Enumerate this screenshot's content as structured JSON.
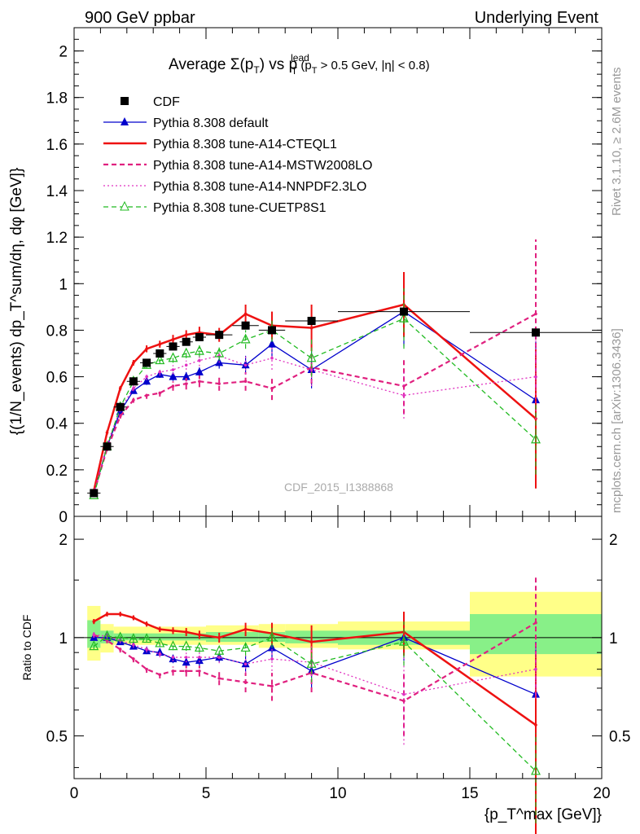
{
  "header": {
    "left": "900 GeV ppbar",
    "right": "Underlying Event"
  },
  "side_labels": {
    "rivet": "Rivet 3.1.10, ≥ 2.6M events",
    "mcplots": "mcplots.cern.ch [arXiv:1306.3436]"
  },
  "watermark": "CDF_2015_I1388868",
  "plot_title": {
    "main": "Average Σ(p",
    "sub1": "T",
    "mid": ") vs p",
    "sup": "lead",
    "sub2": "T",
    "tail": " (p",
    "sub3": "T",
    "end": " > 0.5 GeV, |η| < 0.8)"
  },
  "y_label_main": "{(1/N_events) dp_T^sum/dη, dφ [GeV]}",
  "y_label_ratio": "Ratio to CDF",
  "x_label": "{p_T^max [GeV]}",
  "colors": {
    "cdf": "#000000",
    "default": "#0000cc",
    "cteql1": "#ee1111",
    "mstw": "#e0207f",
    "nnpdf": "#e030c0",
    "cuetp8s1": "#22bb22",
    "band_yellow": "#ffff88",
    "band_green": "#88f088"
  },
  "chart_data": [
    {
      "type": "line",
      "panel": "main",
      "xlim": [
        0,
        20
      ],
      "ylim": [
        0,
        2.1
      ],
      "x_ticks": [],
      "y_ticks": [
        "0",
        "0.2",
        "0.4",
        "0.6",
        "0.8",
        "1",
        "1.2",
        "1.4",
        "1.6",
        "1.8",
        "2"
      ],
      "legend_position": "top-left",
      "series": [
        {
          "name": "CDF",
          "style": "marker-square",
          "color": "#000000",
          "x": [
            0.75,
            1.25,
            1.75,
            2.25,
            2.75,
            3.25,
            3.75,
            4.25,
            4.75,
            5.5,
            6.5,
            7.5,
            9.0,
            12.5,
            17.5
          ],
          "y": [
            0.1,
            0.3,
            0.47,
            0.58,
            0.66,
            0.7,
            0.73,
            0.75,
            0.77,
            0.78,
            0.82,
            0.8,
            0.84,
            0.88,
            0.79
          ],
          "xerr": [
            0.25,
            0.25,
            0.25,
            0.25,
            0.25,
            0.25,
            0.25,
            0.25,
            0.25,
            0.5,
            0.5,
            0.5,
            1.0,
            2.5,
            2.5
          ]
        },
        {
          "name": "Pythia 8.308 default",
          "style": "solid-triangle",
          "color": "#0000cc",
          "x": [
            0.75,
            1.25,
            1.75,
            2.25,
            2.75,
            3.25,
            3.75,
            4.25,
            4.75,
            5.5,
            6.5,
            7.5,
            9.0,
            12.5,
            17.5
          ],
          "y": [
            0.1,
            0.3,
            0.45,
            0.54,
            0.58,
            0.61,
            0.6,
            0.6,
            0.62,
            0.66,
            0.65,
            0.74,
            0.63,
            0.88,
            0.5
          ],
          "err": [
            0.005,
            0.008,
            0.01,
            0.01,
            0.015,
            0.015,
            0.018,
            0.02,
            0.02,
            0.025,
            0.04,
            0.06,
            0.08,
            0.15,
            0.25
          ]
        },
        {
          "name": "Pythia 8.308 tune-A14-CTEQL1",
          "style": "solid-thick",
          "color": "#ee1111",
          "x": [
            0.75,
            1.25,
            1.75,
            2.25,
            2.75,
            3.25,
            3.75,
            4.25,
            4.75,
            5.5,
            6.5,
            7.5,
            9.0,
            12.5,
            17.5
          ],
          "y": [
            0.11,
            0.36,
            0.55,
            0.66,
            0.72,
            0.74,
            0.76,
            0.78,
            0.79,
            0.78,
            0.87,
            0.82,
            0.81,
            0.91,
            0.42
          ],
          "err": [
            0.005,
            0.01,
            0.01,
            0.012,
            0.015,
            0.015,
            0.02,
            0.02,
            0.025,
            0.03,
            0.04,
            0.06,
            0.1,
            0.14,
            0.3
          ]
        },
        {
          "name": "Pythia 8.308 tune-A14-MSTW2008LO",
          "style": "dashed",
          "color": "#e0207f",
          "x": [
            0.75,
            1.25,
            1.75,
            2.25,
            2.75,
            3.25,
            3.75,
            4.25,
            4.75,
            5.5,
            6.5,
            7.5,
            9.0,
            12.5,
            17.5
          ],
          "y": [
            0.1,
            0.29,
            0.43,
            0.5,
            0.52,
            0.53,
            0.56,
            0.57,
            0.58,
            0.57,
            0.58,
            0.55,
            0.64,
            0.56,
            0.87
          ],
          "err": [
            0.005,
            0.01,
            0.01,
            0.012,
            0.015,
            0.015,
            0.02,
            0.025,
            0.025,
            0.03,
            0.04,
            0.05,
            0.07,
            0.12,
            0.32
          ]
        },
        {
          "name": "Pythia 8.308 tune-A14-NNPDF2.3LO",
          "style": "dotted",
          "color": "#e030c0",
          "x": [
            0.75,
            1.25,
            1.75,
            2.25,
            2.75,
            3.25,
            3.75,
            4.25,
            4.75,
            5.5,
            6.5,
            7.5,
            9.0,
            12.5,
            17.5
          ],
          "y": [
            0.1,
            0.31,
            0.46,
            0.55,
            0.6,
            0.62,
            0.63,
            0.65,
            0.67,
            0.69,
            0.65,
            0.68,
            0.63,
            0.52,
            0.6
          ],
          "err": [
            0.005,
            0.01,
            0.01,
            0.012,
            0.015,
            0.015,
            0.02,
            0.02,
            0.025,
            0.03,
            0.04,
            0.05,
            0.07,
            0.1,
            0.2
          ]
        },
        {
          "name": "Pythia 8.308 tune-CUETP8S1",
          "style": "dashed-open-triangle",
          "color": "#22bb22",
          "x": [
            0.75,
            1.25,
            1.75,
            2.25,
            2.75,
            3.25,
            3.75,
            4.25,
            4.75,
            5.5,
            6.5,
            7.5,
            9.0,
            12.5,
            17.5
          ],
          "y": [
            0.09,
            0.3,
            0.47,
            0.58,
            0.65,
            0.67,
            0.68,
            0.7,
            0.71,
            0.7,
            0.76,
            0.8,
            0.68,
            0.85,
            0.33
          ],
          "err": [
            0.005,
            0.008,
            0.01,
            0.012,
            0.015,
            0.015,
            0.02,
            0.02,
            0.025,
            0.03,
            0.04,
            0.05,
            0.08,
            0.13,
            0.15
          ]
        }
      ]
    },
    {
      "type": "line",
      "panel": "ratio",
      "xlim": [
        0,
        20
      ],
      "ylim": [
        0.37,
        2.35
      ],
      "log_scale": true,
      "x_ticks": [
        "0",
        "5",
        "10",
        "15",
        "20"
      ],
      "y_ticks": [
        "0.5",
        "1",
        "2"
      ],
      "reference_line": 1,
      "band_yellow": [
        [
          0.5,
          1.0,
          0.85,
          1.25
        ],
        [
          1.0,
          1.5,
          0.9,
          1.1
        ],
        [
          1.5,
          5.0,
          0.95,
          1.08
        ],
        [
          5.0,
          7.0,
          0.95,
          1.09
        ],
        [
          7.0,
          8.0,
          0.93,
          1.1
        ],
        [
          8.0,
          10.0,
          0.93,
          1.1
        ],
        [
          10.0,
          15.0,
          0.92,
          1.12
        ],
        [
          15.0,
          20.0,
          0.76,
          1.38
        ]
      ],
      "band_green": [
        [
          0.5,
          1.0,
          0.93,
          1.13
        ],
        [
          1.0,
          1.5,
          0.96,
          1.05
        ],
        [
          1.5,
          5.0,
          0.98,
          1.03
        ],
        [
          5.0,
          7.0,
          0.97,
          1.04
        ],
        [
          7.0,
          8.0,
          0.97,
          1.04
        ],
        [
          8.0,
          10.0,
          0.96,
          1.05
        ],
        [
          10.0,
          15.0,
          0.95,
          1.05
        ],
        [
          15.0,
          20.0,
          0.89,
          1.18
        ]
      ],
      "series": [
        {
          "name": "Pythia 8.308 default",
          "color": "#0000cc",
          "style": "solid-triangle",
          "x": [
            0.75,
            1.25,
            1.75,
            2.25,
            2.75,
            3.25,
            3.75,
            4.25,
            4.75,
            5.5,
            6.5,
            7.5,
            9.0,
            12.5,
            17.5
          ],
          "y": [
            1.0,
            1.0,
            0.97,
            0.94,
            0.91,
            0.9,
            0.86,
            0.84,
            0.85,
            0.87,
            0.83,
            0.93,
            0.79,
            1.0,
            0.67
          ],
          "err": [
            0.02,
            0.02,
            0.02,
            0.02,
            0.02,
            0.02,
            0.025,
            0.03,
            0.03,
            0.03,
            0.05,
            0.08,
            0.1,
            0.15,
            0.3
          ]
        },
        {
          "name": "Pythia 8.308 tune-A14-CTEQL1",
          "color": "#ee1111",
          "style": "solid-thick",
          "x": [
            0.75,
            1.25,
            1.75,
            2.25,
            2.75,
            3.25,
            3.75,
            4.25,
            4.75,
            5.5,
            6.5,
            7.5,
            9.0,
            12.5,
            17.5
          ],
          "y": [
            1.12,
            1.18,
            1.18,
            1.15,
            1.1,
            1.06,
            1.05,
            1.04,
            1.02,
            1.0,
            1.06,
            1.03,
            0.97,
            1.04,
            0.54
          ],
          "err": [
            0.02,
            0.02,
            0.02,
            0.02,
            0.02,
            0.02,
            0.025,
            0.03,
            0.03,
            0.035,
            0.05,
            0.08,
            0.12,
            0.16,
            0.35
          ]
        },
        {
          "name": "Pythia 8.308 tune-A14-MSTW2008LO",
          "color": "#e0207f",
          "style": "dashed",
          "x": [
            0.75,
            1.25,
            1.75,
            2.25,
            2.75,
            3.25,
            3.75,
            4.25,
            4.75,
            5.5,
            6.5,
            7.5,
            9.0,
            12.5,
            17.5
          ],
          "y": [
            1.02,
            0.98,
            0.92,
            0.86,
            0.8,
            0.77,
            0.79,
            0.79,
            0.79,
            0.75,
            0.73,
            0.71,
            0.78,
            0.64,
            1.11
          ],
          "err": [
            0.02,
            0.02,
            0.02,
            0.02,
            0.02,
            0.02,
            0.025,
            0.03,
            0.03,
            0.035,
            0.05,
            0.07,
            0.1,
            0.14,
            0.45
          ]
        },
        {
          "name": "Pythia 8.308 tune-A14-NNPDF2.3LO",
          "color": "#e030c0",
          "style": "dotted",
          "x": [
            0.75,
            1.25,
            1.75,
            2.25,
            2.75,
            3.25,
            3.75,
            4.25,
            4.75,
            5.5,
            6.5,
            7.5,
            9.0,
            12.5,
            17.5
          ],
          "y": [
            1.02,
            1.01,
            0.98,
            0.95,
            0.92,
            0.89,
            0.87,
            0.87,
            0.87,
            0.87,
            0.83,
            0.86,
            0.84,
            0.67,
            0.8
          ],
          "err": [
            0.02,
            0.02,
            0.02,
            0.02,
            0.02,
            0.02,
            0.025,
            0.03,
            0.03,
            0.035,
            0.05,
            0.07,
            0.1,
            0.2,
            0.15
          ]
        },
        {
          "name": "Pythia 8.308 tune-CUETP8S1",
          "color": "#22bb22",
          "style": "dashed-open-triangle",
          "x": [
            0.75,
            1.25,
            1.75,
            2.25,
            2.75,
            3.25,
            3.75,
            4.25,
            4.75,
            5.5,
            6.5,
            7.5,
            9.0,
            12.5,
            17.5
          ],
          "y": [
            0.94,
            1.01,
            1.0,
            0.99,
            0.99,
            0.96,
            0.94,
            0.94,
            0.93,
            0.91,
            0.93,
            1.0,
            0.83,
            0.97,
            0.39
          ],
          "err": [
            0.02,
            0.02,
            0.02,
            0.02,
            0.02,
            0.02,
            0.025,
            0.03,
            0.03,
            0.03,
            0.05,
            0.07,
            0.1,
            0.15,
            0.12
          ]
        }
      ]
    }
  ]
}
